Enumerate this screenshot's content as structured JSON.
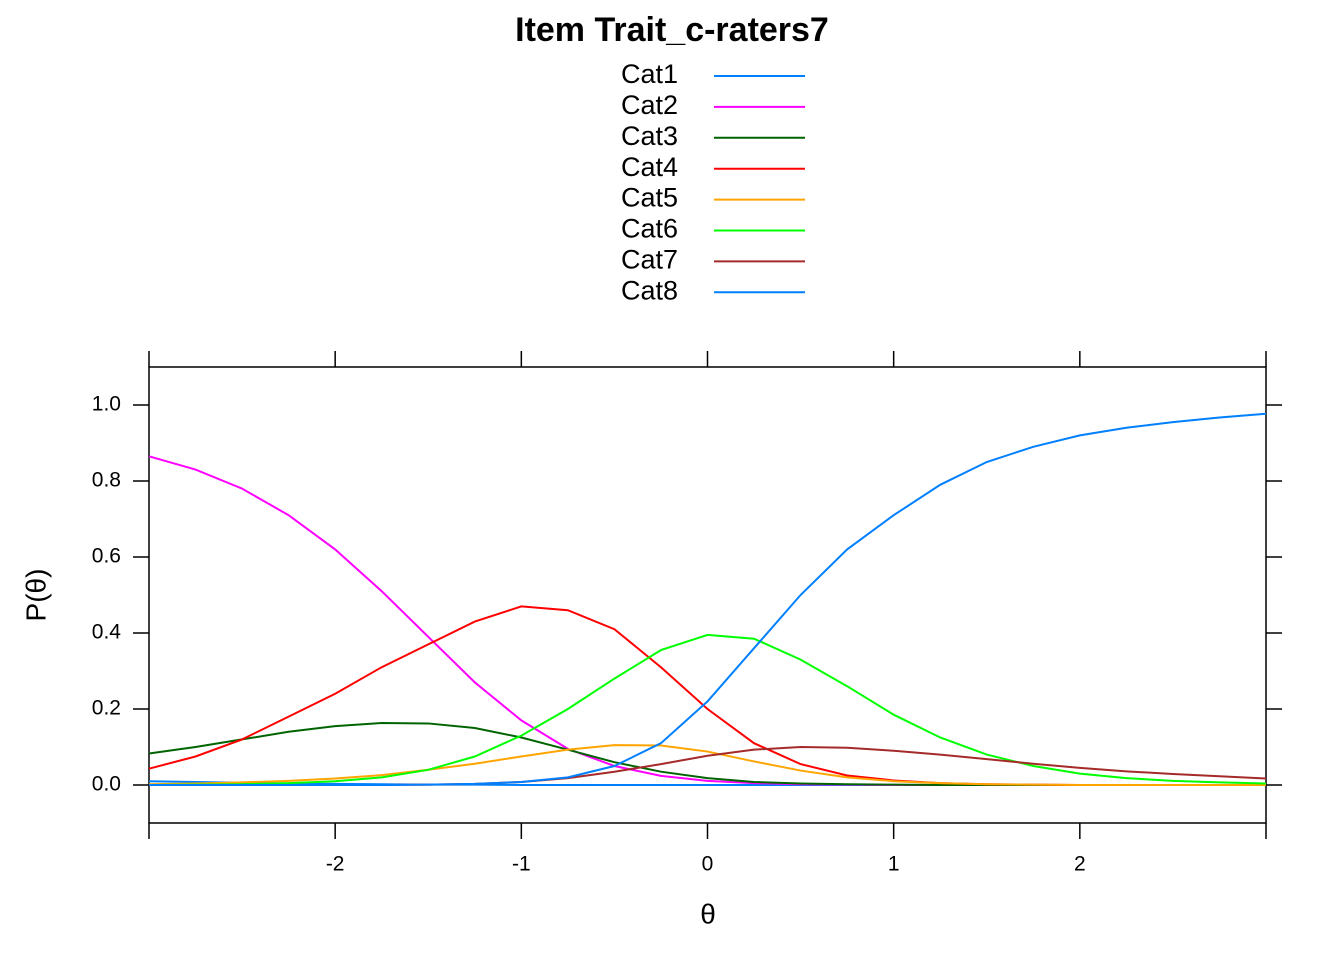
{
  "chart_data": {
    "type": "line",
    "title": "Item Trait_c-raters7",
    "x_label": "θ",
    "y_label": "P(θ)",
    "x": [
      -3,
      -2.75,
      -2.5,
      -2.25,
      -2,
      -1.75,
      -1.5,
      -1.25,
      -1,
      -0.75,
      -0.5,
      -0.25,
      0,
      0.25,
      0.5,
      0.75,
      1,
      1.25,
      1.5,
      1.75,
      2,
      2.25,
      2.5,
      2.75,
      3
    ],
    "xlim": [
      -3,
      3
    ],
    "xticks": [
      -2,
      -1,
      0,
      1,
      2
    ],
    "ylim": [
      -0.1,
      1.1
    ],
    "yticks": [
      {
        "value": 0,
        "label": "0.0"
      },
      0.2,
      0.4,
      0.6,
      0.8,
      {
        "value": 1,
        "label": "1.0"
      }
    ],
    "series": [
      {
        "name": "Cat1",
        "color": "#0080ff",
        "values": [
          0.01,
          0.008,
          0.006,
          0.004,
          0.003,
          0.002,
          0.001,
          0.001,
          0,
          0,
          0,
          0,
          0,
          0,
          0,
          0,
          0,
          0,
          0,
          0,
          0,
          0,
          0,
          0,
          0
        ]
      },
      {
        "name": "Cat2",
        "color": "#ff00ff",
        "values": [
          0.865,
          0.83,
          0.78,
          0.71,
          0.62,
          0.51,
          0.39,
          0.27,
          0.17,
          0.095,
          0.05,
          0.024,
          0.011,
          0.005,
          0.002,
          0.001,
          0,
          0,
          0,
          0,
          0,
          0,
          0,
          0,
          0
        ]
      },
      {
        "name": "Cat3",
        "color": "#006400",
        "values": [
          0.083,
          0.1,
          0.12,
          0.14,
          0.155,
          0.163,
          0.162,
          0.15,
          0.125,
          0.093,
          0.06,
          0.035,
          0.018,
          0.008,
          0.004,
          0.002,
          0.001,
          0,
          0,
          0,
          0,
          0,
          0,
          0,
          0
        ]
      },
      {
        "name": "Cat4",
        "color": "#ff0000",
        "values": [
          0.043,
          0.075,
          0.12,
          0.18,
          0.24,
          0.31,
          0.37,
          0.43,
          0.47,
          0.46,
          0.41,
          0.31,
          0.2,
          0.11,
          0.055,
          0.025,
          0.012,
          0.005,
          0.002,
          0.001,
          0,
          0,
          0,
          0,
          0
        ]
      },
      {
        "name": "Cat5",
        "color": "#ffa500",
        "values": [
          0.002,
          0.004,
          0.007,
          0.011,
          0.017,
          0.026,
          0.04,
          0.056,
          0.075,
          0.093,
          0.105,
          0.104,
          0.088,
          0.062,
          0.038,
          0.02,
          0.01,
          0.005,
          0.002,
          0.001,
          0,
          0,
          0,
          0,
          0
        ]
      },
      {
        "name": "Cat6",
        "color": "#00ff00",
        "values": [
          0,
          0.001,
          0.002,
          0.005,
          0.01,
          0.02,
          0.04,
          0.075,
          0.13,
          0.2,
          0.28,
          0.355,
          0.395,
          0.385,
          0.33,
          0.26,
          0.185,
          0.125,
          0.08,
          0.05,
          0.03,
          0.018,
          0.011,
          0.007,
          0.004
        ]
      },
      {
        "name": "Cat7",
        "color": "#a52a2a",
        "values": [
          0,
          0,
          0,
          0,
          0,
          0,
          0.001,
          0.003,
          0.008,
          0.018,
          0.035,
          0.055,
          0.077,
          0.093,
          0.1,
          0.098,
          0.09,
          0.08,
          0.068,
          0.056,
          0.045,
          0.036,
          0.029,
          0.023,
          0.017
        ]
      },
      {
        "name": "Cat8",
        "color": "#0080ff",
        "values": [
          0,
          0,
          0,
          0,
          0,
          0,
          0.001,
          0.003,
          0.008,
          0.02,
          0.05,
          0.11,
          0.22,
          0.36,
          0.5,
          0.62,
          0.71,
          0.79,
          0.85,
          0.89,
          0.92,
          0.94,
          0.955,
          0.967,
          0.977
        ]
      }
    ]
  }
}
